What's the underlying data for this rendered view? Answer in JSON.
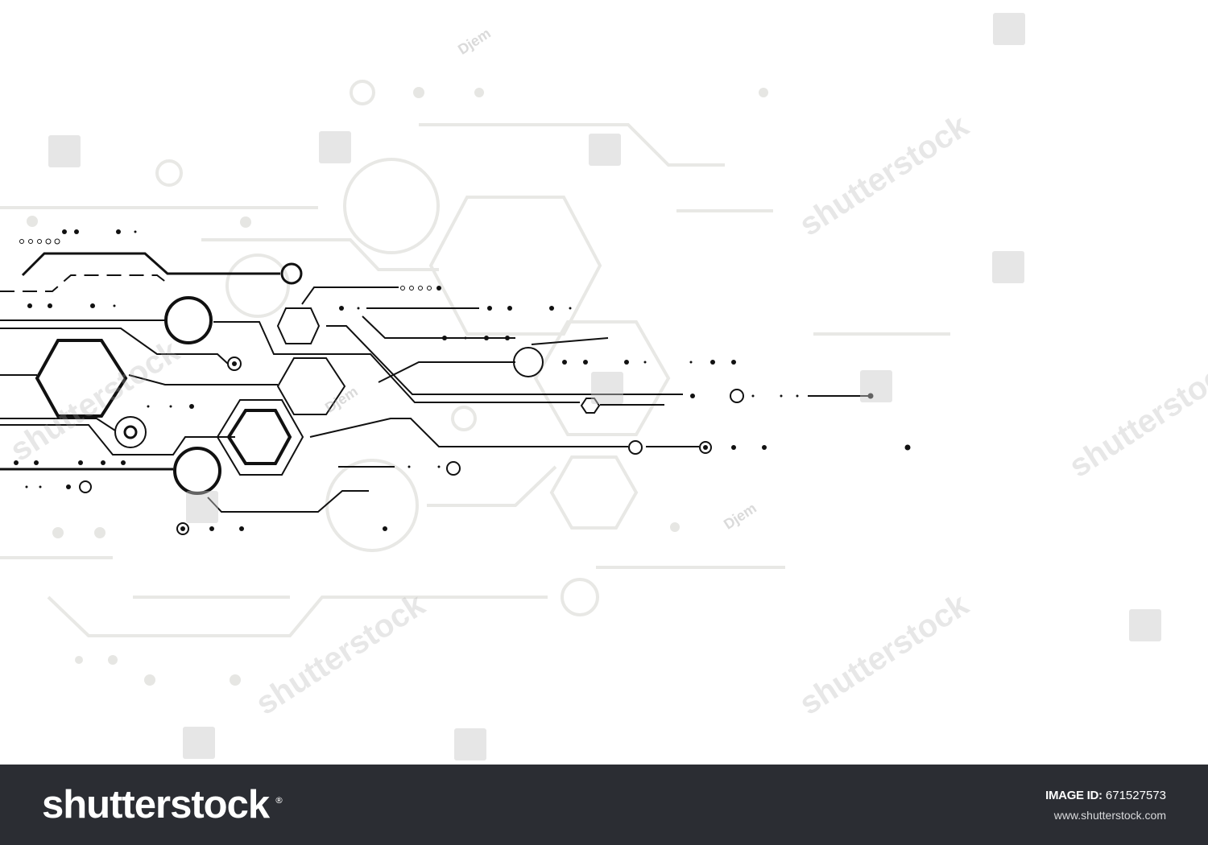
{
  "footer": {
    "brand": "shutterstock",
    "image_id_label": "IMAGE ID:",
    "image_id_value": "671527573",
    "website": "www.shutterstock.com"
  },
  "watermark": {
    "text": "shutterstock",
    "author": "Djem"
  },
  "colors": {
    "footer_background": "#2b2d33",
    "line_dark": "#111111",
    "line_light": "#e6e6e4",
    "background": "#ffffff"
  }
}
